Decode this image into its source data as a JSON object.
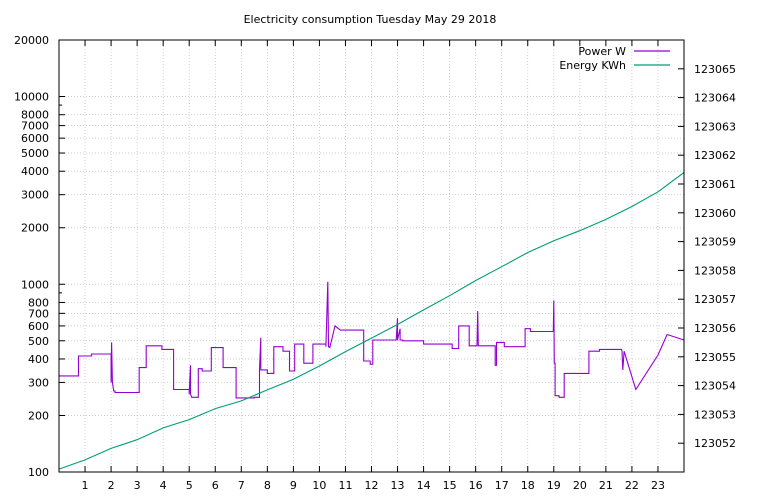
{
  "chart_data": {
    "type": "line",
    "title": "Electricity consumption Tuesday May 29 2018",
    "x_axis": {
      "range": [
        0,
        24
      ],
      "ticks": [
        1,
        2,
        3,
        4,
        5,
        6,
        7,
        8,
        9,
        10,
        11,
        12,
        13,
        14,
        15,
        16,
        17,
        18,
        19,
        20,
        21,
        22,
        23
      ],
      "grid": true
    },
    "y_left": {
      "scale": "log",
      "range": [
        100,
        20000
      ],
      "ticks": [
        100,
        200,
        300,
        400,
        500,
        600,
        700,
        800,
        1000,
        2000,
        3000,
        4000,
        5000,
        6000,
        7000,
        8000,
        10000,
        20000
      ],
      "tick_labels": [
        "100",
        "200",
        "300",
        "400",
        "500",
        "600",
        "700",
        "800",
        "1000",
        "2000",
        "3000",
        "4000",
        "5000",
        "6000",
        "7000",
        "8000",
        "10000",
        "20000"
      ]
    },
    "y_right": {
      "scale": "linear",
      "range": [
        123051.0,
        123066.0
      ],
      "ticks": [
        123052,
        123053,
        123054,
        123055,
        123056,
        123057,
        123058,
        123059,
        123060,
        123061,
        123062,
        123063,
        123064,
        123065
      ]
    },
    "legend_position": "top-right",
    "colors": {
      "power": "#9400d3",
      "energy": "#009e73",
      "grid": "#bdbdbd"
    },
    "series": [
      {
        "name": "Power W",
        "axis": "left",
        "x": [
          0,
          0.75,
          0.75,
          1.25,
          1.25,
          2.0,
          2.0,
          2.02,
          2.05,
          2.1,
          2.12,
          2.15,
          2.15,
          2.5,
          2.5,
          3.08,
          3.08,
          3.35,
          3.35,
          3.95,
          3.95,
          4.4,
          4.4,
          5.0,
          5.0,
          5.05,
          5.05,
          5.1,
          5.1,
          5.35,
          5.35,
          5.5,
          5.5,
          5.85,
          5.85,
          6.3,
          6.3,
          6.8,
          6.8,
          7.5,
          7.5,
          7.7,
          7.7,
          7.75,
          7.75,
          8.0,
          8.0,
          8.25,
          8.25,
          8.6,
          8.6,
          8.85,
          8.85,
          9.05,
          9.05,
          9.4,
          9.4,
          9.75,
          9.75,
          10.25,
          10.25,
          10.32,
          10.35,
          10.4,
          10.4,
          10.6,
          10.6,
          10.8,
          10.8,
          11.7,
          11.7,
          11.95,
          11.95,
          12.05,
          12.05,
          12.95,
          12.95,
          13.0,
          13.0,
          13.1,
          13.1,
          13.2,
          13.2,
          14.0,
          14.0,
          15.1,
          15.1,
          15.35,
          15.35,
          15.75,
          15.75,
          16.05,
          16.05,
          16.08,
          16.1,
          16.12,
          16.12,
          16.75,
          16.75,
          16.8,
          16.8,
          17.1,
          17.1,
          17.9,
          17.9,
          18.1,
          18.1,
          18.98,
          18.98,
          19.0,
          19.02,
          19.05,
          19.05,
          19.2,
          19.2,
          19.4,
          19.4,
          20.35,
          20.35,
          20.75,
          20.75,
          21.6,
          21.6,
          21.62,
          21.65,
          21.7,
          21.7,
          22.15,
          22.15,
          23.0,
          23.0,
          23.35,
          23.35,
          24.0
        ],
        "y": [
          325,
          325,
          415,
          415,
          425,
          425,
          300,
          490,
          300,
          270,
          270,
          270,
          265,
          265,
          265,
          265,
          360,
          360,
          470,
          470,
          450,
          450,
          275,
          275,
          260,
          370,
          260,
          250,
          250,
          250,
          355,
          355,
          345,
          345,
          460,
          460,
          360,
          360,
          248,
          248,
          250,
          250,
          350,
          520,
          350,
          350,
          335,
          335,
          465,
          465,
          440,
          440,
          345,
          345,
          480,
          480,
          380,
          380,
          480,
          480,
          465,
          1030,
          465,
          460,
          460,
          600,
          600,
          570,
          570,
          570,
          390,
          390,
          375,
          375,
          505,
          505,
          505,
          660,
          505,
          580,
          505,
          505,
          500,
          500,
          480,
          480,
          455,
          455,
          600,
          600,
          470,
          470,
          470,
          720,
          470,
          470,
          470,
          470,
          370,
          370,
          490,
          490,
          465,
          465,
          580,
          580,
          560,
          560,
          560,
          820,
          380,
          380,
          255,
          255,
          250,
          250,
          335,
          335,
          440,
          440,
          450,
          450,
          450,
          440,
          350,
          440,
          440,
          275,
          275,
          420,
          420,
          540,
          540,
          505
        ]
      },
      {
        "name": "Energy KWh",
        "axis": "right",
        "x": [
          0,
          1,
          2,
          3,
          4,
          5,
          6,
          7,
          8,
          9,
          10,
          11,
          12,
          13,
          14,
          15,
          16,
          17,
          18,
          19,
          20,
          21,
          22,
          23,
          24
        ],
        "y": [
          123051.1,
          123051.42,
          123051.82,
          123052.12,
          123052.53,
          123052.82,
          123053.2,
          123053.47,
          123053.85,
          123054.22,
          123054.68,
          123055.18,
          123055.65,
          123056.12,
          123056.63,
          123057.12,
          123057.65,
          123058.13,
          123058.62,
          123059.03,
          123059.38,
          123059.77,
          123060.22,
          123060.73,
          123061.4
        ]
      }
    ]
  }
}
